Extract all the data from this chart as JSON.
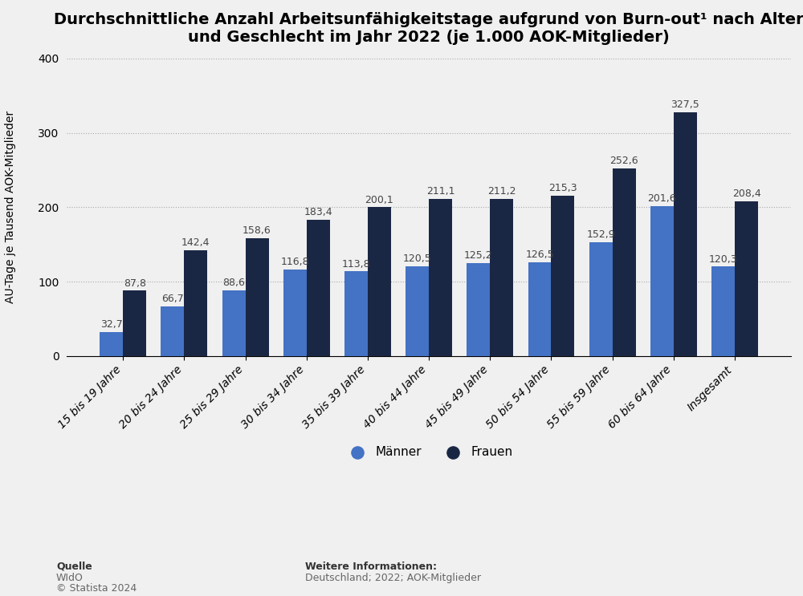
{
  "title": "Durchschnittliche Anzahl Arbeitsunfähigkeitstage aufgrund von Burn-out¹ nach Alter\nund Geschlecht im Jahr 2022 (je 1.000 AOK-Mitglieder)",
  "categories": [
    "15 bis 19 Jahre",
    "20 bis 24 Jahre",
    "25 bis 29 Jahre",
    "30 bis 34 Jahre",
    "35 bis 39 Jahre",
    "40 bis 44 Jahre",
    "45 bis 49 Jahre",
    "50 bis 54 Jahre",
    "55 bis 59 Jahre",
    "60 bis 64 Jahre",
    "Insgesamt"
  ],
  "maenner": [
    32.7,
    66.7,
    88.6,
    116.8,
    113.8,
    120.5,
    125.2,
    126.5,
    152.9,
    201.6,
    120.3
  ],
  "frauen": [
    87.8,
    142.4,
    158.6,
    183.4,
    200.1,
    211.1,
    211.2,
    215.3,
    252.6,
    327.5,
    208.4
  ],
  "color_maenner": "#4472C4",
  "color_frauen": "#1A2744",
  "ylabel": "AU-Tage je Tausend AOK-Mitglieder",
  "ylim": [
    0,
    400
  ],
  "yticks": [
    0,
    100,
    200,
    300,
    400
  ],
  "legend_maenner": "Männer",
  "legend_frauen": "Frauen",
  "source_label": "Quelle",
  "source_value": "WIdO",
  "source_copy": "© Statista 2024",
  "info_label": "Weitere Informationen:",
  "info_value": "Deutschland; 2022; AOK-Mitglieder",
  "background_color": "#f0f0f0",
  "plot_background": "#f0f0f0",
  "title_fontsize": 14,
  "bar_width": 0.38,
  "value_fontsize": 9
}
